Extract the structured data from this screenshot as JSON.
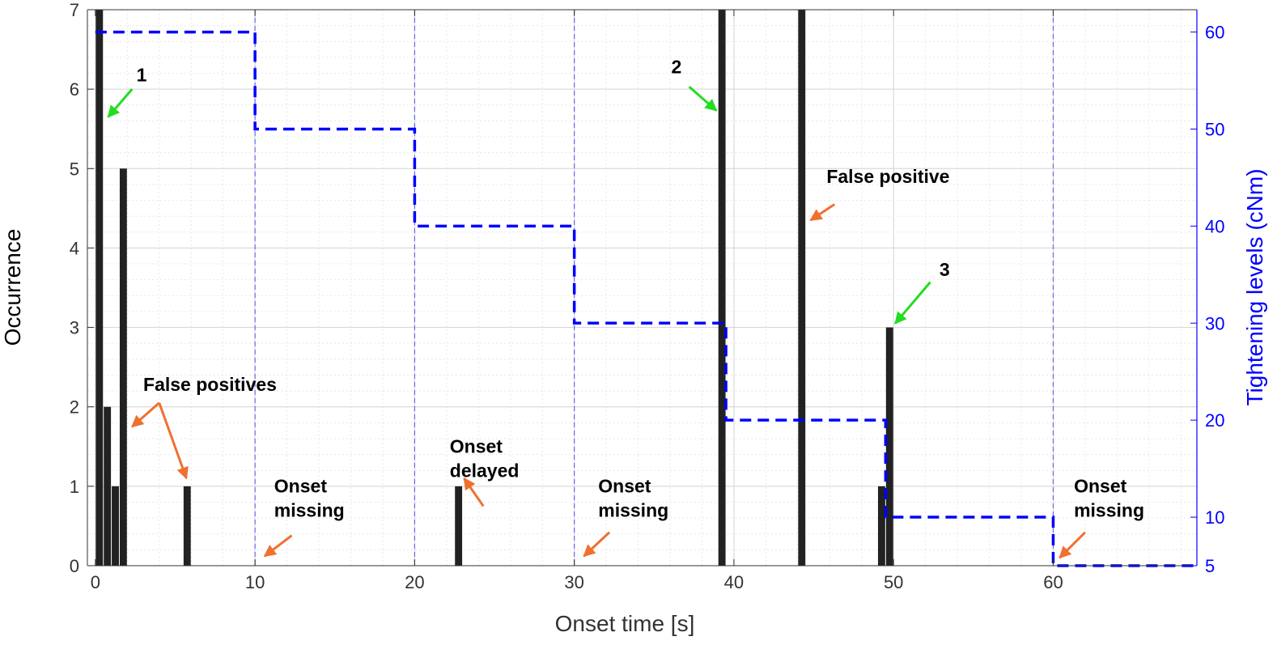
{
  "chart_data": {
    "type": "bar",
    "xlabel": "Onset time [s]",
    "ylabel": "Occurrence",
    "y2label": "Tightening levels (cNm)",
    "xlim": [
      -0.5,
      69
    ],
    "ylim": [
      0,
      7
    ],
    "y2lim": [
      5,
      62.3
    ],
    "xticks": [
      0,
      10,
      20,
      30,
      40,
      50,
      60
    ],
    "yticks": [
      0,
      1,
      2,
      3,
      4,
      5,
      6,
      7
    ],
    "y2ticks": [
      5,
      10,
      20,
      30,
      40,
      50,
      60
    ],
    "grid": true,
    "bar_color": "#222222",
    "line_color": "#0000ff",
    "arrow_colors": {
      "green": "#22dd22",
      "orange": "#f07030"
    },
    "bars": [
      {
        "x": 0.25,
        "value": 7
      },
      {
        "x": 0.75,
        "value": 2
      },
      {
        "x": 1.25,
        "value": 1
      },
      {
        "x": 1.75,
        "value": 5
      },
      {
        "x": 5.75,
        "value": 1
      },
      {
        "x": 22.75,
        "value": 1
      },
      {
        "x": 39.25,
        "value": 7
      },
      {
        "x": 44.25,
        "value": 7
      },
      {
        "x": 49.25,
        "value": 1
      },
      {
        "x": 49.75,
        "value": 3
      }
    ],
    "tightening_levels": {
      "x": [
        0,
        10,
        10,
        20,
        20,
        30,
        30,
        39.5,
        39.5,
        49.5,
        49.5,
        60,
        60,
        69
      ],
      "y": [
        60,
        60,
        50,
        50,
        40,
        40,
        30,
        30,
        20,
        20,
        10,
        10,
        5,
        5
      ]
    },
    "vertical_markers": [
      10,
      20,
      30,
      60
    ],
    "annotations": [
      {
        "lines": [
          "1"
        ],
        "text_x": 2.9,
        "text_y": 6.1,
        "anchor": "middle",
        "arrow_color": "green",
        "arrows": [
          {
            "from": [
              2.3,
              6.0
            ],
            "to": [
              0.8,
              5.65
            ]
          }
        ]
      },
      {
        "lines": [
          "2"
        ],
        "text_x": 36.4,
        "text_y": 6.2,
        "anchor": "middle",
        "arrow_color": "green",
        "arrows": [
          {
            "from": [
              37.2,
              6.03
            ],
            "to": [
              38.9,
              5.73
            ]
          }
        ]
      },
      {
        "lines": [
          "3"
        ],
        "text_x": 53.2,
        "text_y": 3.65,
        "anchor": "middle",
        "arrow_color": "green",
        "arrows": [
          {
            "from": [
              52.3,
              3.57
            ],
            "to": [
              50.1,
              3.05
            ]
          }
        ]
      },
      {
        "lines": [
          "False positives"
        ],
        "text_x": 3.0,
        "text_y": 2.2,
        "anchor": "start",
        "arrow_color": "orange",
        "arrows": [
          {
            "from": [
              4.0,
              2.05
            ],
            "to": [
              2.3,
              1.75
            ]
          },
          {
            "from": [
              4.0,
              2.05
            ],
            "to": [
              5.7,
              1.1
            ]
          }
        ]
      },
      {
        "lines": [
          "Onset",
          "missing"
        ],
        "text_x": 11.2,
        "text_y": 0.92,
        "anchor": "start",
        "arrow_color": "orange",
        "arrows": [
          {
            "from": [
              12.3,
              0.38
            ],
            "to": [
              10.6,
              0.12
            ]
          }
        ]
      },
      {
        "lines": [
          "Onset",
          "delayed"
        ],
        "text_x": 22.2,
        "text_y": 1.42,
        "anchor": "start",
        "arrow_color": "orange",
        "arrows": [
          {
            "from": [
              24.3,
              0.75
            ],
            "to": [
              23.1,
              1.1
            ]
          }
        ]
      },
      {
        "lines": [
          "Onset",
          "missing"
        ],
        "text_x": 31.5,
        "text_y": 0.92,
        "anchor": "start",
        "arrow_color": "orange",
        "arrows": [
          {
            "from": [
              32.2,
              0.42
            ],
            "to": [
              30.6,
              0.12
            ]
          }
        ]
      },
      {
        "lines": [
          "False positive"
        ],
        "text_x": 45.8,
        "text_y": 4.82,
        "anchor": "start",
        "arrow_color": "orange",
        "arrows": [
          {
            "from": [
              46.3,
              4.55
            ],
            "to": [
              44.8,
              4.35
            ]
          }
        ]
      },
      {
        "lines": [
          "Onset",
          "missing"
        ],
        "text_x": 61.3,
        "text_y": 0.92,
        "anchor": "start",
        "arrow_color": "orange",
        "arrows": [
          {
            "from": [
              62.0,
              0.42
            ],
            "to": [
              60.4,
              0.1
            ]
          }
        ]
      }
    ]
  }
}
